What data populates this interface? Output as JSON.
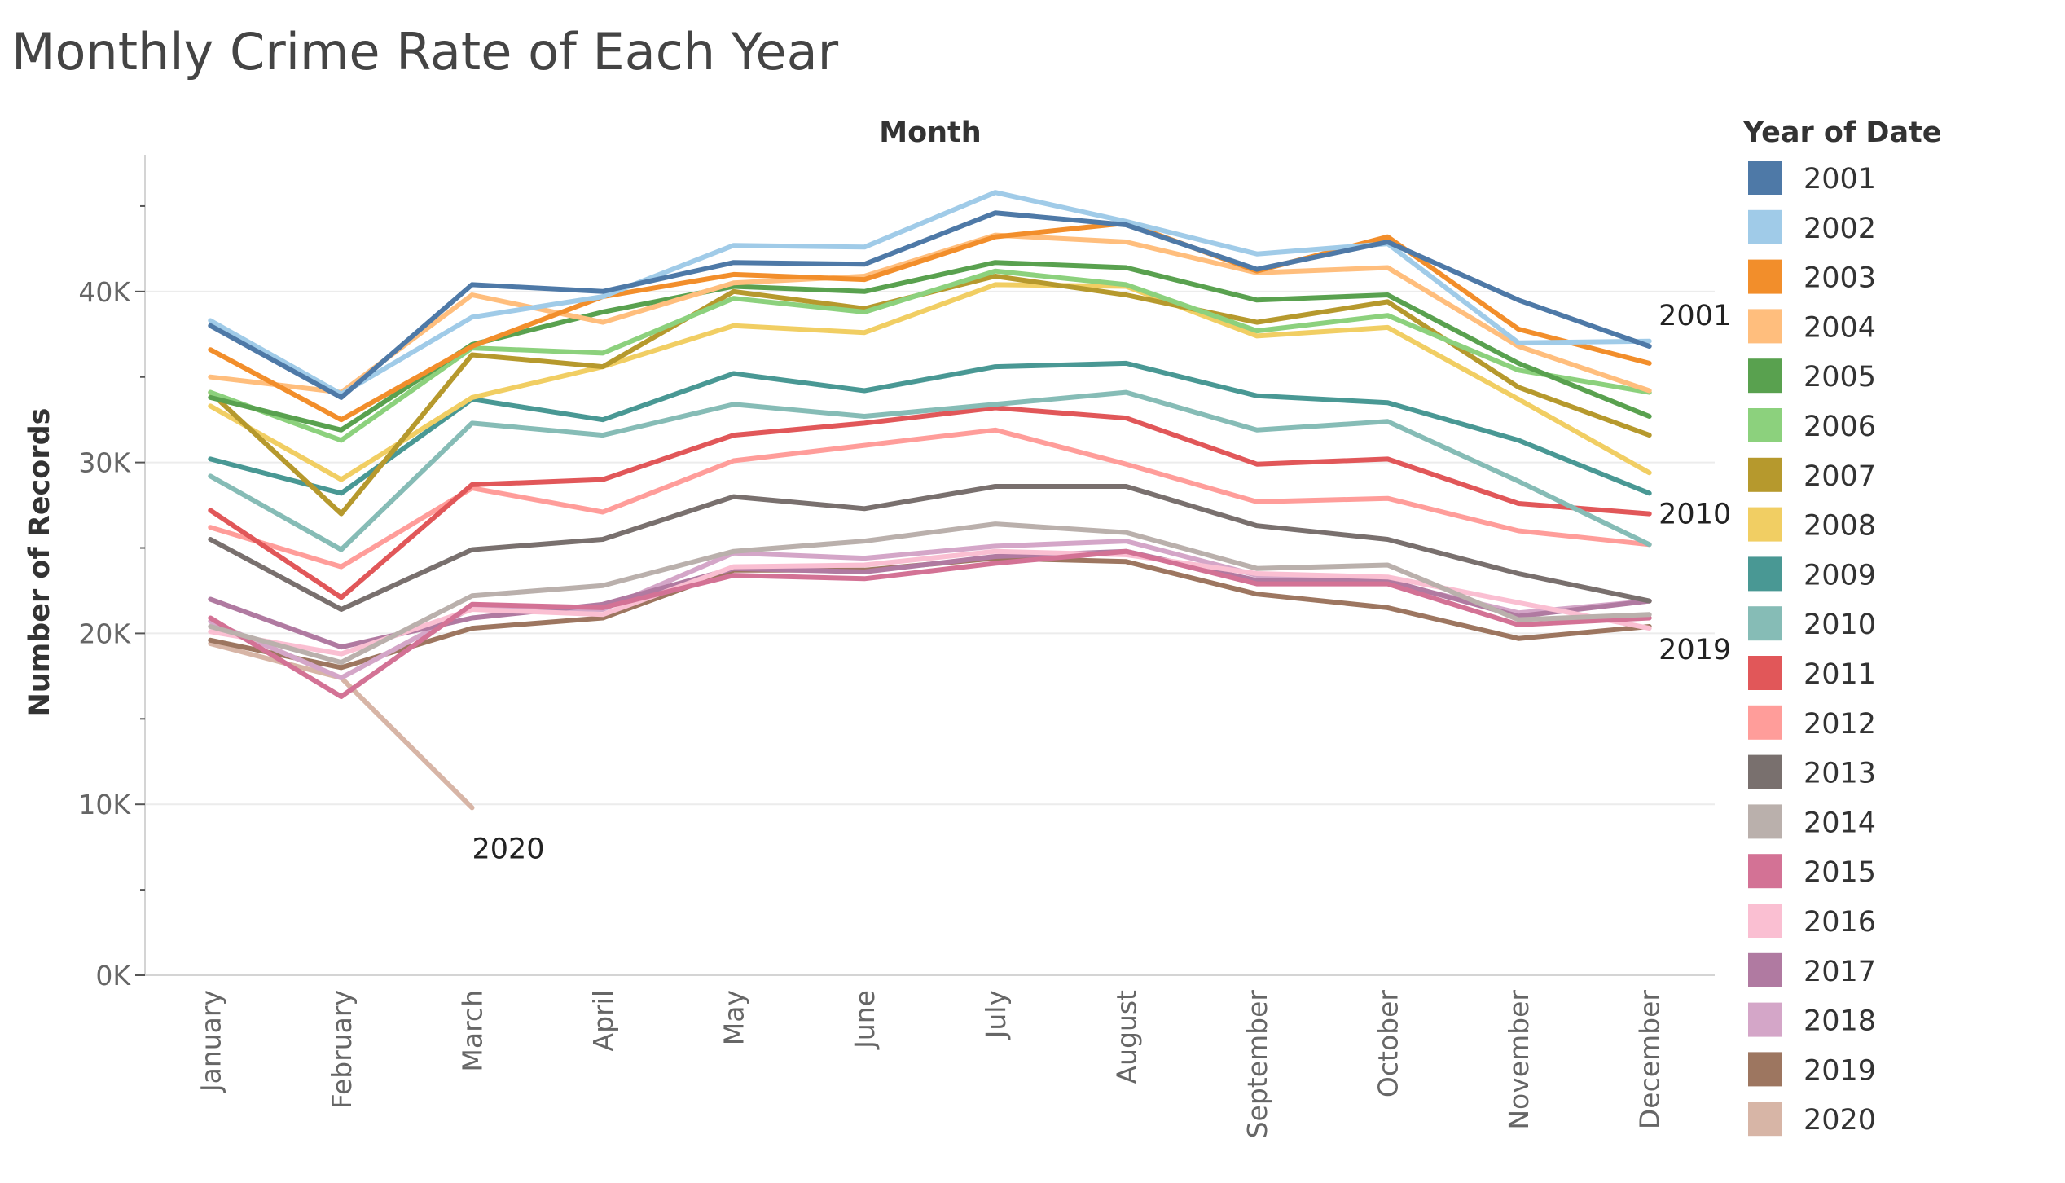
{
  "chart_data": {
    "type": "line",
    "title": "Monthly Crime Rate of Each Year",
    "xlabel": "Month",
    "ylabel": "Number of Records",
    "ylim": [
      0,
      48000
    ],
    "yticks": [
      0,
      10000,
      20000,
      30000,
      40000
    ],
    "ytick_labels": [
      "0K",
      "10K",
      "20K",
      "30K",
      "40K"
    ],
    "grid": true,
    "legend_title": "Year of Date",
    "legend_position": "right",
    "categories": [
      "January",
      "February",
      "March",
      "April",
      "May",
      "June",
      "July",
      "August",
      "September",
      "October",
      "November",
      "December"
    ],
    "series": [
      {
        "name": "2001",
        "color": "#4E79A7",
        "values": [
          38000,
          33800,
          40400,
          40000,
          41700,
          41600,
          44600,
          43900,
          41300,
          42900,
          39500,
          36800
        ]
      },
      {
        "name": "2002",
        "color": "#A0CBE8",
        "values": [
          38300,
          34000,
          38500,
          39700,
          42700,
          42600,
          45800,
          44100,
          42200,
          42800,
          37000,
          37100
        ]
      },
      {
        "name": "2003",
        "color": "#F28E2B",
        "values": [
          36600,
          32500,
          36800,
          39700,
          41000,
          40700,
          43200,
          44000,
          41200,
          43200,
          37800,
          35800
        ]
      },
      {
        "name": "2004",
        "color": "#FFBE7D",
        "values": [
          35000,
          34100,
          39800,
          38200,
          40500,
          40900,
          43300,
          42900,
          41100,
          41400,
          36800,
          34200
        ]
      },
      {
        "name": "2005",
        "color": "#59A14F",
        "values": [
          33800,
          31900,
          36900,
          38800,
          40300,
          40000,
          41700,
          41400,
          39500,
          39800,
          35800,
          32700
        ]
      },
      {
        "name": "2006",
        "color": "#8CD17D",
        "values": [
          34100,
          31300,
          36700,
          36400,
          39600,
          38800,
          41200,
          40400,
          37700,
          38600,
          35400,
          34100
        ]
      },
      {
        "name": "2007",
        "color": "#B6992D",
        "values": [
          34100,
          27000,
          36300,
          35600,
          40000,
          39000,
          40900,
          39800,
          38200,
          39400,
          34400,
          31600
        ]
      },
      {
        "name": "2008",
        "color": "#F1CE63",
        "values": [
          33300,
          29000,
          33800,
          35600,
          38000,
          37600,
          40400,
          40300,
          37400,
          37900,
          33700,
          29400
        ]
      },
      {
        "name": "2009",
        "color": "#499894",
        "values": [
          30200,
          28200,
          33700,
          32500,
          35200,
          34200,
          35600,
          35800,
          33900,
          33500,
          31300,
          28200
        ]
      },
      {
        "name": "2010",
        "color": "#86BCB6",
        "values": [
          29200,
          24900,
          32300,
          31600,
          33400,
          32700,
          33400,
          34100,
          31900,
          32400,
          28900,
          25200
        ]
      },
      {
        "name": "2011",
        "color": "#E15759",
        "values": [
          27200,
          22100,
          28700,
          29000,
          31600,
          32300,
          33200,
          32600,
          29900,
          30200,
          27600,
          27000
        ]
      },
      {
        "name": "2012",
        "color": "#FF9D9A",
        "values": [
          26200,
          23900,
          28500,
          27100,
          30100,
          31000,
          31900,
          29900,
          27700,
          27900,
          26000,
          25200
        ]
      },
      {
        "name": "2013",
        "color": "#79706E",
        "values": [
          25500,
          21400,
          24900,
          25500,
          28000,
          27300,
          28600,
          28600,
          26300,
          25500,
          23500,
          21900
        ]
      },
      {
        "name": "2014",
        "color": "#BAB0AC",
        "values": [
          20400,
          18300,
          22200,
          22800,
          24800,
          25400,
          26400,
          25900,
          23800,
          24000,
          20800,
          21100
        ]
      },
      {
        "name": "2015",
        "color": "#D37295",
        "values": [
          20900,
          16300,
          21700,
          21500,
          23400,
          23200,
          24100,
          24800,
          22900,
          22900,
          20500,
          20900
        ]
      },
      {
        "name": "2016",
        "color": "#FABFD2",
        "values": [
          20100,
          18800,
          21400,
          21100,
          23900,
          24000,
          24800,
          24600,
          23500,
          23300,
          21800,
          20300
        ]
      },
      {
        "name": "2017",
        "color": "#B07AA1",
        "values": [
          22000,
          19200,
          20900,
          21700,
          23800,
          23600,
          24500,
          24800,
          23100,
          23100,
          21000,
          21900
        ]
      },
      {
        "name": "2018",
        "color": "#D4A6C8",
        "values": [
          20700,
          17400,
          21500,
          21400,
          24700,
          24400,
          25100,
          25400,
          23400,
          23000,
          21200,
          21900
        ]
      },
      {
        "name": "2019",
        "color": "#9D7660",
        "values": [
          19600,
          18000,
          20300,
          20900,
          23700,
          23700,
          24400,
          24200,
          22300,
          21500,
          19700,
          20400
        ]
      },
      {
        "name": "2020",
        "color": "#D7B5A6",
        "values": [
          19400,
          17400,
          9800,
          null,
          null,
          null,
          null,
          null,
          null,
          null,
          null,
          null
        ]
      }
    ],
    "end_labels": [
      {
        "text": "2001",
        "series": "2001"
      },
      {
        "text": "2010",
        "series": "2010"
      },
      {
        "text": "2019",
        "series": "2019"
      },
      {
        "text": "2020",
        "series": "2020"
      }
    ]
  }
}
